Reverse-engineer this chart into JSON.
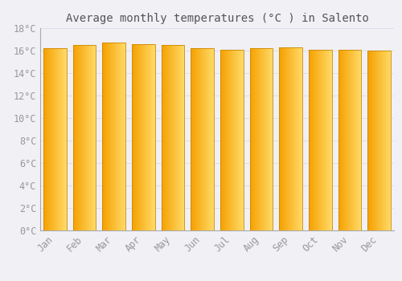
{
  "title": "Average monthly temperatures (°C ) in Salento",
  "months": [
    "Jan",
    "Feb",
    "Mar",
    "Apr",
    "May",
    "Jun",
    "Jul",
    "Aug",
    "Sep",
    "Oct",
    "Nov",
    "Dec"
  ],
  "temperatures": [
    16.2,
    16.5,
    16.7,
    16.6,
    16.5,
    16.2,
    16.1,
    16.2,
    16.3,
    16.1,
    16.1,
    16.0
  ],
  "bar_color_left": "#F5A000",
  "bar_color_right": "#FFD966",
  "bar_edge_color": "#CC8800",
  "background_color": "#F0F0F5",
  "grid_color": "#DDDDEE",
  "text_color": "#999999",
  "title_color": "#555555",
  "ylim": [
    0,
    18
  ],
  "yticks": [
    0,
    2,
    4,
    6,
    8,
    10,
    12,
    14,
    16,
    18
  ],
  "title_fontsize": 10,
  "tick_fontsize": 8.5,
  "bar_width": 0.78
}
